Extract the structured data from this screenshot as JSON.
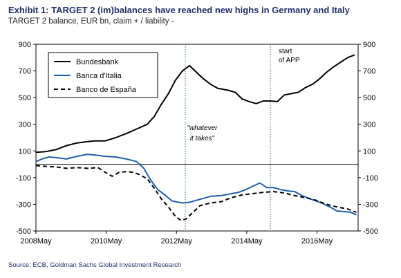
{
  "title": "Exhibit 1: TARGET 2 (im)balances have reached new highs in Germany and Italy",
  "subtitle": "TARGET 2 balance, EUR bn, claim + / liability -",
  "source": "Source: ECB, Goldman Sachs Global Investment Research",
  "chart_data": {
    "type": "line",
    "x_tick_labels": [
      "2008May",
      "2010May",
      "2012May",
      "2014May",
      "2016May"
    ],
    "x_tick_values": [
      2008.33,
      2010.33,
      2012.33,
      2014.33,
      2016.33
    ],
    "xlim": [
      2008.33,
      2017.5
    ],
    "ylim": [
      -500,
      900
    ],
    "y_ticks": [
      900,
      700,
      500,
      300,
      100,
      -100,
      -300,
      -500
    ],
    "y_tick_labels": [
      "900",
      "700",
      "500",
      "300",
      "100",
      "-100",
      "-300",
      "-500"
    ],
    "legend_position": "top-left",
    "grid": false,
    "annotations": [
      {
        "text_lines": [
          "\"whatever",
          "it takes\""
        ],
        "x": 2012.55,
        "style": "italic"
      },
      {
        "text_lines": [
          "start",
          "of APP"
        ],
        "x": 2015.0,
        "style": "normal"
      }
    ],
    "vlines": [
      2012.58,
      2015.0
    ],
    "series": [
      {
        "name": "Bundesbank",
        "color": "#000000",
        "dash": "solid",
        "points": [
          [
            2008.33,
            90
          ],
          [
            2008.6,
            95
          ],
          [
            2008.9,
            110
          ],
          [
            2009.2,
            140
          ],
          [
            2009.5,
            160
          ],
          [
            2009.8,
            170
          ],
          [
            2010.0,
            175
          ],
          [
            2010.3,
            175
          ],
          [
            2010.6,
            200
          ],
          [
            2010.9,
            230
          ],
          [
            2011.2,
            265
          ],
          [
            2011.5,
            300
          ],
          [
            2011.7,
            360
          ],
          [
            2011.9,
            450
          ],
          [
            2012.1,
            530
          ],
          [
            2012.3,
            630
          ],
          [
            2012.5,
            700
          ],
          [
            2012.7,
            740
          ],
          [
            2012.9,
            690
          ],
          [
            2013.1,
            640
          ],
          [
            2013.3,
            600
          ],
          [
            2013.5,
            570
          ],
          [
            2013.8,
            555
          ],
          [
            2014.0,
            540
          ],
          [
            2014.2,
            490
          ],
          [
            2014.4,
            470
          ],
          [
            2014.6,
            455
          ],
          [
            2014.8,
            475
          ],
          [
            2015.0,
            475
          ],
          [
            2015.2,
            470
          ],
          [
            2015.4,
            520
          ],
          [
            2015.6,
            530
          ],
          [
            2015.8,
            540
          ],
          [
            2016.0,
            575
          ],
          [
            2016.2,
            600
          ],
          [
            2016.4,
            640
          ],
          [
            2016.6,
            690
          ],
          [
            2016.8,
            730
          ],
          [
            2017.0,
            765
          ],
          [
            2017.2,
            800
          ],
          [
            2017.4,
            820
          ]
        ]
      },
      {
        "name": "Banca d'Italia",
        "color": "#1f5fa8",
        "dash": "solid",
        "points": [
          [
            2008.33,
            20
          ],
          [
            2008.5,
            40
          ],
          [
            2008.7,
            55
          ],
          [
            2008.9,
            50
          ],
          [
            2009.2,
            40
          ],
          [
            2009.5,
            60
          ],
          [
            2009.8,
            75
          ],
          [
            2010.0,
            70
          ],
          [
            2010.3,
            60
          ],
          [
            2010.6,
            55
          ],
          [
            2010.9,
            40
          ],
          [
            2011.2,
            20
          ],
          [
            2011.4,
            -30
          ],
          [
            2011.6,
            -120
          ],
          [
            2011.8,
            -190
          ],
          [
            2012.0,
            -230
          ],
          [
            2012.2,
            -275
          ],
          [
            2012.5,
            -290
          ],
          [
            2012.7,
            -285
          ],
          [
            2012.9,
            -270
          ],
          [
            2013.1,
            -255
          ],
          [
            2013.3,
            -240
          ],
          [
            2013.6,
            -235
          ],
          [
            2013.9,
            -220
          ],
          [
            2014.1,
            -210
          ],
          [
            2014.3,
            -190
          ],
          [
            2014.5,
            -165
          ],
          [
            2014.7,
            -140
          ],
          [
            2014.9,
            -175
          ],
          [
            2015.1,
            -175
          ],
          [
            2015.3,
            -190
          ],
          [
            2015.5,
            -200
          ],
          [
            2015.7,
            -205
          ],
          [
            2015.9,
            -235
          ],
          [
            2016.1,
            -255
          ],
          [
            2016.3,
            -275
          ],
          [
            2016.5,
            -295
          ],
          [
            2016.7,
            -320
          ],
          [
            2016.9,
            -350
          ],
          [
            2017.1,
            -355
          ],
          [
            2017.3,
            -360
          ],
          [
            2017.45,
            -380
          ]
        ]
      },
      {
        "name": "Banco de España",
        "color": "#000000",
        "dash": "dashed",
        "points": [
          [
            2008.33,
            -10
          ],
          [
            2008.6,
            -15
          ],
          [
            2008.9,
            -20
          ],
          [
            2009.2,
            -30
          ],
          [
            2009.5,
            -25
          ],
          [
            2009.8,
            -30
          ],
          [
            2010.1,
            -25
          ],
          [
            2010.3,
            -60
          ],
          [
            2010.5,
            -90
          ],
          [
            2010.7,
            -60
          ],
          [
            2010.9,
            -55
          ],
          [
            2011.1,
            -60
          ],
          [
            2011.3,
            -80
          ],
          [
            2011.5,
            -110
          ],
          [
            2011.7,
            -180
          ],
          [
            2011.9,
            -260
          ],
          [
            2012.1,
            -320
          ],
          [
            2012.3,
            -390
          ],
          [
            2012.45,
            -420
          ],
          [
            2012.6,
            -410
          ],
          [
            2012.8,
            -360
          ],
          [
            2013.0,
            -310
          ],
          [
            2013.3,
            -290
          ],
          [
            2013.6,
            -280
          ],
          [
            2013.9,
            -250
          ],
          [
            2014.2,
            -230
          ],
          [
            2014.5,
            -220
          ],
          [
            2014.8,
            -210
          ],
          [
            2015.1,
            -205
          ],
          [
            2015.4,
            -215
          ],
          [
            2015.7,
            -235
          ],
          [
            2016.0,
            -250
          ],
          [
            2016.3,
            -270
          ],
          [
            2016.6,
            -300
          ],
          [
            2016.9,
            -320
          ],
          [
            2017.2,
            -335
          ],
          [
            2017.45,
            -360
          ]
        ]
      }
    ]
  }
}
